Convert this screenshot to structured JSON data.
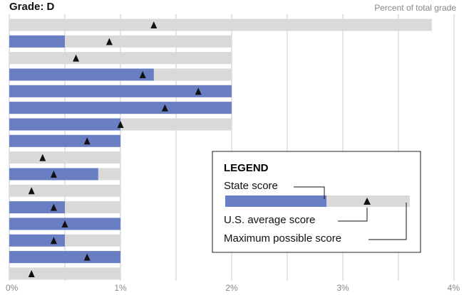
{
  "chart_data": {
    "type": "bullet",
    "title": "Grade: D",
    "subtitle": "Percent of total grade",
    "legend_title": "LEGEND",
    "series": [
      {
        "name": "State score",
        "color": "#6a7ec3",
        "values": [
          0,
          0.5,
          0,
          1.3,
          2,
          2,
          1,
          1,
          0,
          0.8,
          0,
          0.5,
          1,
          0.5,
          1,
          0
        ]
      },
      {
        "name": "U.S. average score",
        "color": "#111111",
        "values": [
          1.3,
          0.9,
          0.6,
          1.2,
          1.7,
          1.4,
          1.0,
          0.7,
          0.3,
          0.4,
          0.2,
          0.4,
          0.5,
          0.4,
          0.7,
          0.2
        ]
      },
      {
        "name": "Maximum possible score",
        "color": "#d9d9d9",
        "values": [
          3.8,
          2,
          2,
          2,
          2,
          2,
          2,
          1,
          1,
          1,
          1,
          1,
          1,
          1,
          1,
          1
        ]
      }
    ],
    "xlim": [
      0,
      4
    ],
    "xticks": [
      {
        "value": 0,
        "label": "0%"
      },
      {
        "value": 1,
        "label": "1%"
      },
      {
        "value": 2,
        "label": "2%"
      },
      {
        "value": 3,
        "label": "3%"
      },
      {
        "value": 4,
        "label": "4%"
      }
    ],
    "minor_xticks": [
      0.5,
      1.5,
      2.5,
      3.5
    ],
    "grid": true
  }
}
